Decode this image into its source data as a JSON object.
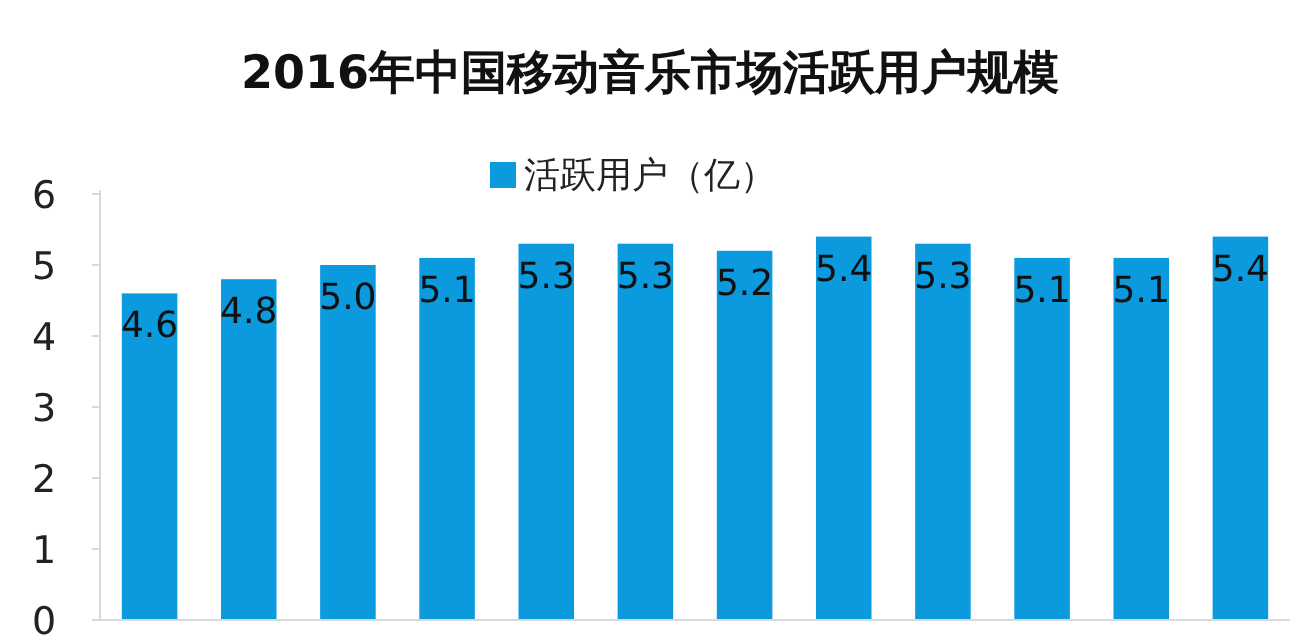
{
  "chart_data": {
    "type": "bar",
    "title": "2016年中国移动音乐市场活跃用户规模",
    "categories": [
      null,
      null,
      null,
      null,
      null,
      null,
      null,
      null,
      null,
      null,
      null,
      null
    ],
    "series": [
      {
        "name": "活跃用户（亿）",
        "color": "#0b9ade",
        "values": [
          4.6,
          4.8,
          5.0,
          5.1,
          5.3,
          5.3,
          5.2,
          5.4,
          5.3,
          5.1,
          5.1,
          5.4
        ],
        "value_labels": [
          "4.6",
          "4.8",
          "5.0",
          "5.1",
          "5.3",
          "5.3",
          "5.2",
          "5.4",
          "5.3",
          "5.1",
          "5.1",
          "5.4"
        ]
      }
    ],
    "ylim": [
      0,
      6
    ],
    "yticks": [
      0,
      1,
      2,
      3,
      4,
      5,
      6
    ],
    "legend": "top",
    "grid": false
  }
}
